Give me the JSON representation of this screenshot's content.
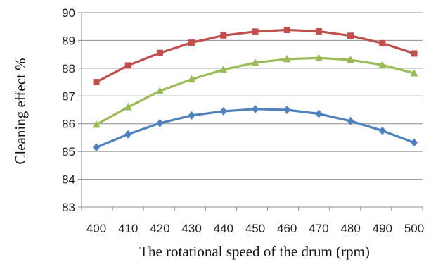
{
  "chart_data": {
    "type": "line",
    "title": "",
    "xlabel": "The rotational speed of the drum (rpm)",
    "ylabel": "Cleaning effect  %",
    "x": [
      400,
      410,
      420,
      430,
      440,
      450,
      460,
      470,
      480,
      490,
      500
    ],
    "x_tick_labels": [
      "400",
      "410",
      "420",
      "430",
      "440",
      "450",
      "460",
      "470",
      "480",
      "490",
      "500"
    ],
    "y_ticks": [
      83,
      84,
      85,
      86,
      87,
      88,
      89,
      90
    ],
    "y_tick_labels": [
      "83",
      "84",
      "85",
      "86",
      "87",
      "88",
      "89",
      "90"
    ],
    "ylim": [
      83,
      90
    ],
    "grid": "horizontal",
    "legend": "none",
    "series": [
      {
        "color": "#c0504d",
        "marker": "square",
        "values": [
          87.5,
          88.1,
          88.55,
          88.92,
          89.18,
          89.32,
          89.38,
          89.33,
          89.17,
          88.9,
          88.53
        ]
      },
      {
        "color": "#9bbb59",
        "marker": "triangle",
        "values": [
          85.97,
          86.6,
          87.18,
          87.6,
          87.95,
          88.2,
          88.33,
          88.37,
          88.3,
          88.12,
          87.82
        ]
      },
      {
        "color": "#4f81bd",
        "marker": "diamond",
        "values": [
          85.15,
          85.62,
          86.02,
          86.3,
          86.45,
          86.53,
          86.5,
          86.36,
          86.1,
          85.75,
          85.32
        ]
      }
    ]
  }
}
